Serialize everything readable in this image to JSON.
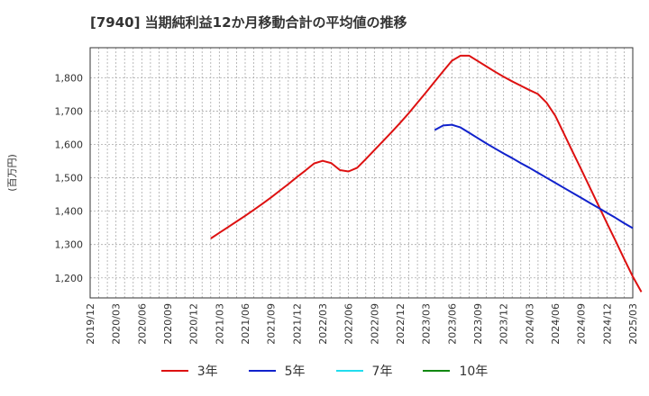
{
  "chart_data": {
    "type": "line",
    "title": "[7940]  当期純利益12か月移動合計の平均値の推移",
    "ylabel": "(百万円)",
    "xlabel": "",
    "ylim": [
      1140,
      1890
    ],
    "yticks": [
      1200,
      1300,
      1400,
      1500,
      1600,
      1700,
      1800
    ],
    "ytick_labels": [
      "1,200",
      "1,300",
      "1,400",
      "1,500",
      "1,600",
      "1,700",
      "1,800"
    ],
    "xlim": [
      "2019-12",
      "2025-03"
    ],
    "xtick_labels": [
      "2019/12",
      "2020/03",
      "2020/06",
      "2020/09",
      "2020/12",
      "2021/03",
      "2021/06",
      "2021/09",
      "2021/12",
      "2022/03",
      "2022/06",
      "2022/09",
      "2022/12",
      "2023/03",
      "2023/06",
      "2023/09",
      "2023/12",
      "2024/03",
      "2024/06",
      "2024/09",
      "2024/12",
      "2025/03"
    ],
    "grid": true,
    "series": [
      {
        "name": "3年",
        "color": "#dd1111",
        "points": [
          [
            "2021-02",
            1318
          ],
          [
            "2021-03",
            1335
          ],
          [
            "2021-04",
            1352
          ],
          [
            "2021-05",
            1369
          ],
          [
            "2021-06",
            1386
          ],
          [
            "2021-07",
            1404
          ],
          [
            "2021-08",
            1422
          ],
          [
            "2021-09",
            1441
          ],
          [
            "2021-10",
            1461
          ],
          [
            "2021-11",
            1481
          ],
          [
            "2021-12",
            1502
          ],
          [
            "2022-01",
            1522
          ],
          [
            "2022-02",
            1543
          ],
          [
            "2022-03",
            1551
          ],
          [
            "2022-04",
            1544
          ],
          [
            "2022-05",
            1523
          ],
          [
            "2022-06",
            1519
          ],
          [
            "2022-07",
            1530
          ],
          [
            "2022-08",
            1556
          ],
          [
            "2022-09",
            1583
          ],
          [
            "2022-10",
            1610
          ],
          [
            "2022-11",
            1637
          ],
          [
            "2022-12",
            1665
          ],
          [
            "2023-01",
            1694
          ],
          [
            "2023-02",
            1725
          ],
          [
            "2023-03",
            1756
          ],
          [
            "2023-04",
            1788
          ],
          [
            "2023-05",
            1820
          ],
          [
            "2023-06",
            1851
          ],
          [
            "2023-07",
            1866
          ],
          [
            "2023-08",
            1866
          ],
          [
            "2023-09",
            1850
          ],
          [
            "2023-10",
            1834
          ],
          [
            "2023-11",
            1818
          ],
          [
            "2023-12",
            1803
          ],
          [
            "2024-01",
            1789
          ],
          [
            "2024-02",
            1776
          ],
          [
            "2024-03",
            1763
          ],
          [
            "2024-04",
            1751
          ],
          [
            "2024-05",
            1725
          ],
          [
            "2024-06",
            1686
          ],
          [
            "2024-07",
            1633
          ],
          [
            "2024-08",
            1579
          ],
          [
            "2024-09",
            1526
          ],
          [
            "2024-10",
            1472
          ],
          [
            "2024-11",
            1418
          ],
          [
            "2024-12",
            1364
          ],
          [
            "2025-01",
            1311
          ],
          [
            "2025-02",
            1257
          ],
          [
            "2025-03",
            1204
          ],
          [
            "2025-04",
            1158
          ]
        ]
      },
      {
        "name": "5年",
        "color": "#1122cc",
        "points": [
          [
            "2023-04",
            1643
          ],
          [
            "2023-05",
            1657
          ],
          [
            "2023-06",
            1659
          ],
          [
            "2023-07",
            1651
          ],
          [
            "2023-08",
            1635
          ],
          [
            "2023-09",
            1619
          ],
          [
            "2023-10",
            1603
          ],
          [
            "2023-11",
            1588
          ],
          [
            "2023-12",
            1573
          ],
          [
            "2024-01",
            1559
          ],
          [
            "2024-02",
            1544
          ],
          [
            "2024-03",
            1530
          ],
          [
            "2024-04",
            1515
          ],
          [
            "2024-05",
            1500
          ],
          [
            "2024-06",
            1485
          ],
          [
            "2024-07",
            1470
          ],
          [
            "2024-08",
            1455
          ],
          [
            "2024-09",
            1440
          ],
          [
            "2024-10",
            1425
          ],
          [
            "2024-11",
            1410
          ],
          [
            "2024-12",
            1395
          ],
          [
            "2025-01",
            1380
          ],
          [
            "2025-02",
            1364
          ],
          [
            "2025-03",
            1349
          ]
        ]
      },
      {
        "name": "7年",
        "color": "#22ddee",
        "points": []
      },
      {
        "name": "10年",
        "color": "#118811",
        "points": []
      }
    ]
  }
}
